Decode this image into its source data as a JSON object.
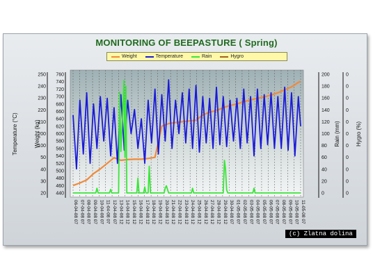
{
  "credit": "(c) Zlatna dolina",
  "chart_data": {
    "type": "line",
    "title": "MONITORING OF BEEPASTURE ( Spring)",
    "legend": [
      "Weight",
      "Temperature",
      "Rain",
      "Hygro"
    ],
    "colors": {
      "Weight": "#f08a3a",
      "Temperature": "#1a1ad8",
      "Rain": "#39e639",
      "Hygro": "#a06020"
    },
    "axes": {
      "temperature": {
        "label": "Temperature (°C)",
        "ticks": [
          "250",
          "240",
          "230",
          "220",
          "210",
          "200",
          "100",
          "50",
          "40",
          "30",
          "20"
        ]
      },
      "weight": {
        "label": "Weight (kg)",
        "ticks": [
          "760",
          "740",
          "720",
          "700",
          "680",
          "660",
          "640",
          "620",
          "600",
          "580",
          "560",
          "540",
          "520",
          "500",
          "480",
          "460",
          "440"
        ],
        "ylim": [
          440,
          760
        ]
      },
      "rain": {
        "label": "Rain (mm)",
        "ticks": [
          "200",
          "180",
          "160",
          "140",
          "120",
          "100",
          "80",
          "60",
          "40",
          "20",
          "0"
        ],
        "ylim": [
          0,
          200
        ]
      },
      "hygro": {
        "label": "Hygro (%)",
        "ticks": [
          "0",
          "0",
          "0",
          "0",
          "0",
          "0",
          "0",
          "0",
          "0",
          "0",
          "0"
        ]
      }
    },
    "x_labels": [
      "06-04-08 07",
      "07-04-08 07",
      "08-04-08 07",
      "09-04-08 07",
      "10-04-08 07",
      "11-04-08 07",
      "12-04-08 07",
      "13-04-08 12",
      "14-04-08 12",
      "15-04-08 12",
      "16-04-08 12",
      "17-04-08 12",
      "18-04-08 12",
      "19-04-08 12",
      "20-04-08 12",
      "21-04-08 12",
      "22-04-08 12",
      "23-04-08 12",
      "24-04-08 12",
      "25-04-08 12",
      "26-04-08 12",
      "27-04-08 12",
      "28-04-08 12",
      "29-04-08 12",
      "30-04-08 07",
      "01-05-08 07",
      "02-05-08 07",
      "03-05-08 07",
      "04-05-08 07",
      "05-05-08 07",
      "06-05-08 07",
      "07-05-08 07",
      "08-05-08 07",
      "09-05-08 07",
      "10-05-08 07",
      "11-05-08 07"
    ],
    "series": [
      {
        "name": "Weight",
        "axis": "weight",
        "x": [
          0,
          3,
          6,
          9,
          12,
          15,
          18,
          21,
          24,
          27,
          30,
          33,
          36,
          39,
          42,
          45,
          48,
          51,
          54,
          57,
          60,
          63,
          66,
          69,
          72,
          75,
          78,
          81,
          84,
          87,
          90,
          93,
          96,
          99,
          100
        ],
        "values": [
          460,
          467,
          475,
          492,
          505,
          520,
          535,
          528,
          530,
          531,
          531,
          533,
          536,
          620,
          627,
          630,
          632,
          634,
          636,
          650,
          658,
          662,
          670,
          676,
          680,
          686,
          691,
          695,
          699,
          704,
          710,
          718,
          726,
          738,
          741
        ]
      },
      {
        "name": "Temperature",
        "axis": "weight",
        "x": [
          0,
          1.5,
          3,
          4.5,
          6,
          7.5,
          9,
          10.5,
          12,
          13.5,
          15,
          16.5,
          18,
          19.5,
          21,
          22.5,
          24,
          25.5,
          27,
          28.5,
          30,
          31.5,
          33,
          34.5,
          36,
          37.5,
          39,
          40.5,
          42,
          43.5,
          45,
          46.5,
          48,
          49.5,
          51,
          52.5,
          54,
          55.5,
          57,
          58.5,
          60,
          61.5,
          63,
          64.5,
          66,
          67.5,
          69,
          70.5,
          72,
          73.5,
          75,
          76.5,
          78,
          79.5,
          81,
          82.5,
          84,
          85.5,
          87,
          88.5,
          90,
          91.5,
          93,
          94.5,
          96,
          97.5,
          99,
          100
        ],
        "values": [
          650,
          505,
          690,
          545,
          710,
          520,
          680,
          560,
          700,
          580,
          695,
          540,
          670,
          520,
          705,
          555,
          690,
          600,
          665,
          560,
          640,
          520,
          690,
          575,
          720,
          545,
          705,
          580,
          745,
          560,
          690,
          600,
          710,
          575,
          720,
          560,
          730,
          550,
          700,
          575,
          695,
          560,
          725,
          570,
          700,
          565,
          690,
          580,
          695,
          560,
          720,
          575,
          700,
          540,
          720,
          560,
          705,
          570,
          710,
          560,
          700,
          560,
          725,
          555,
          710,
          540,
          700,
          620
        ]
      },
      {
        "name": "Rain",
        "axis": "rain",
        "x": [
          0,
          10,
          10.5,
          11,
          16,
          16.5,
          17,
          20,
          20.5,
          21,
          22,
          22.4,
          22.8,
          23.2,
          23.6,
          24,
          28,
          28.5,
          29,
          31,
          31.5,
          32,
          33,
          33.5,
          34,
          40,
          40.5,
          41,
          41.5,
          42,
          52,
          52.5,
          53,
          66,
          66.5,
          67,
          67.5,
          68,
          79,
          79.5,
          80,
          100
        ],
        "values": [
          0,
          0,
          8,
          0,
          0,
          6,
          0,
          0,
          170,
          70,
          150,
          190,
          60,
          180,
          0,
          0,
          0,
          25,
          0,
          0,
          10,
          0,
          0,
          45,
          0,
          0,
          8,
          12,
          6,
          0,
          0,
          8,
          0,
          0,
          55,
          40,
          5,
          0,
          0,
          8,
          0,
          0
        ]
      },
      {
        "name": "Hygro",
        "axis": "hygro",
        "x": [],
        "values": []
      }
    ],
    "grid": "vertical dashed",
    "legend_position": "top"
  }
}
